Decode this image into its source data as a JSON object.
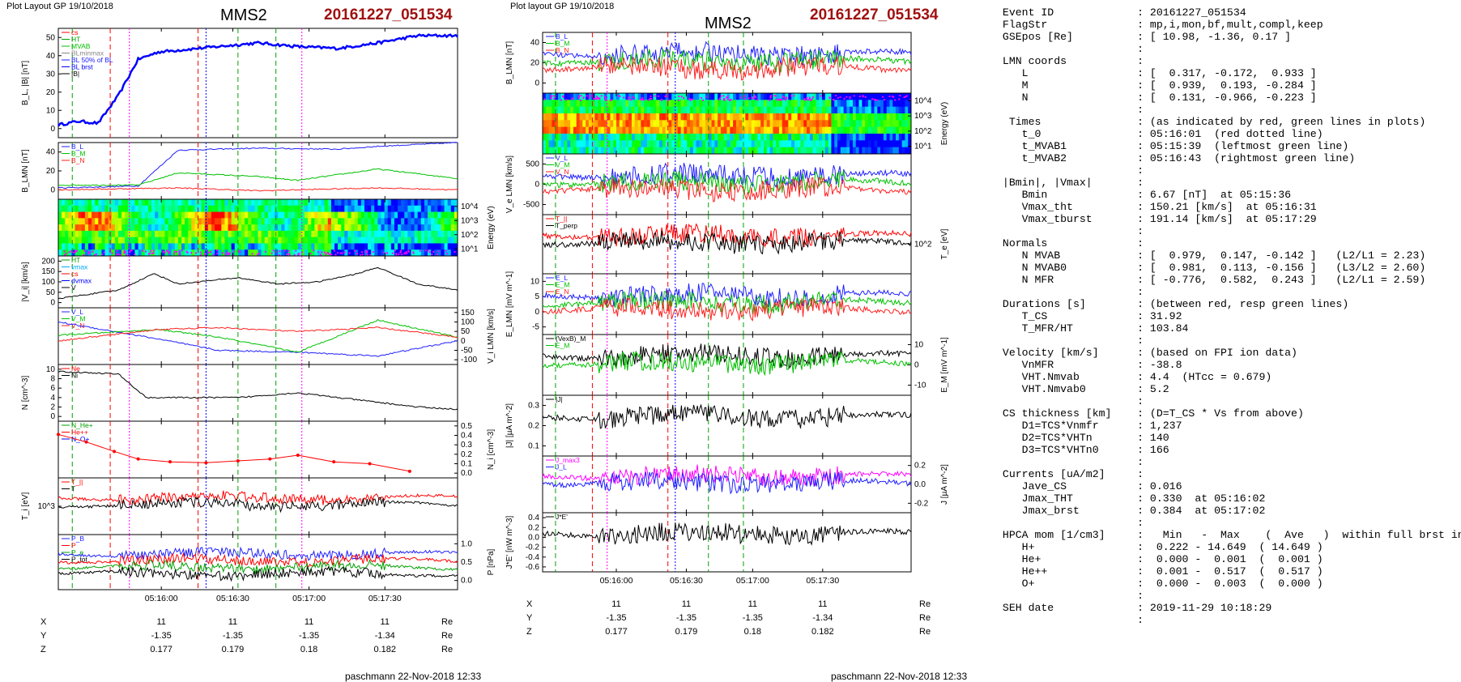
{
  "header": {
    "left_plot_label": "Plot Layout GP 19/10/2018",
    "middle_plot_label": "Plot layout GP 19/10/2018",
    "spacecraft": "MMS2",
    "event_id": "20161227_051534"
  },
  "colors": {
    "event_red": "#a01010",
    "bx": "#2020ff",
    "by": "#00c000",
    "bz": "#ff2020",
    "black": "#000000",
    "magenta": "#ff00ff"
  },
  "footer": {
    "left": "paschmann 22-Nov-2018 12:33",
    "middle": "paschmann 22-Nov-2018 12:33"
  },
  "time_axis": {
    "ticks": [
      "05:16:00",
      "05:16:30",
      "05:17:00",
      "05:17:30"
    ]
  },
  "ephemeris": {
    "unit": "Re",
    "rows": [
      {
        "label": "X",
        "values": [
          "11",
          "11",
          "11",
          "11"
        ]
      },
      {
        "label": "Y",
        "values": [
          "-1.35",
          "-1.35",
          "-1.35",
          "-1.34"
        ]
      },
      {
        "label": "Z",
        "values": [
          "0.177",
          "0.179",
          "0.18",
          "0.182"
        ]
      }
    ]
  },
  "chart_data": [
    {
      "type": "line",
      "panel": "left-1",
      "ylabel": "B_L, |B| [nT]",
      "yticks": [
        "50",
        "40",
        "30",
        "20",
        "10",
        "0"
      ],
      "legend": [
        "cs",
        "HT",
        "MVAB",
        "BLminmax",
        "BL 50% of BL",
        "BL brst",
        "|B|"
      ],
      "series": [
        {
          "name": "BL brst",
          "x": [
            0,
            0.05,
            0.1,
            0.15,
            0.2,
            0.25,
            0.3,
            0.4,
            0.5,
            0.6,
            0.7,
            0.8,
            0.9,
            1.0
          ],
          "values": [
            2,
            4,
            3,
            18,
            38,
            42,
            43,
            45,
            47,
            45,
            44,
            47,
            51,
            51
          ]
        }
      ]
    },
    {
      "type": "line",
      "panel": "left-2",
      "ylabel": "B_LMN [nT]",
      "yticks": [
        "40",
        "20",
        "0"
      ],
      "legend": [
        "B_L",
        "B_M",
        "B_N"
      ],
      "series": [
        {
          "name": "B_L",
          "x": [
            0,
            0.2,
            0.3,
            0.5,
            0.7,
            0.8,
            1.0
          ],
          "values": [
            2,
            4,
            42,
            44,
            43,
            46,
            50
          ]
        },
        {
          "name": "B_M",
          "x": [
            0,
            0.2,
            0.3,
            0.5,
            0.6,
            0.8,
            1.0
          ],
          "values": [
            5,
            5,
            18,
            14,
            10,
            22,
            12
          ]
        },
        {
          "name": "B_N",
          "x": [
            0,
            0.3,
            0.5,
            0.8,
            1.0
          ],
          "values": [
            0,
            2,
            -1,
            2,
            0
          ]
        }
      ]
    },
    {
      "type": "heatmap",
      "panel": "left-3",
      "ylabel": "Energy (eV)",
      "yticks": [
        "10^4",
        "10^3",
        "10^2",
        "10^1"
      ]
    },
    {
      "type": "line",
      "panel": "left-4",
      "ylabel": "|V_i| [km/s]",
      "yticks": [
        "200",
        "150",
        "100",
        "50",
        "0"
      ],
      "legend": [
        "HT",
        "vmax",
        "cs",
        "dvmax",
        "V"
      ],
      "series": [
        {
          "name": "V",
          "x": [
            0,
            0.15,
            0.24,
            0.3,
            0.45,
            0.55,
            0.65,
            0.75,
            0.8,
            0.9,
            1.0
          ],
          "values": [
            20,
            60,
            140,
            90,
            120,
            90,
            100,
            140,
            170,
            90,
            60
          ]
        }
      ]
    },
    {
      "type": "line",
      "panel": "left-5",
      "ylabel": "V_i LMN [km/s]",
      "yticks": [
        "150",
        "100",
        "50",
        "0",
        "-50",
        "-100"
      ],
      "legend": [
        "V_L",
        "V_M",
        "V_N"
      ],
      "series": [
        {
          "name": "V_L",
          "x": [
            0,
            0.25,
            0.4,
            0.6,
            0.8,
            1.0
          ],
          "values": [
            100,
            10,
            -50,
            -60,
            -80,
            0
          ]
        },
        {
          "name": "V_M",
          "x": [
            0,
            0.25,
            0.4,
            0.6,
            0.8,
            1.0
          ],
          "values": [
            30,
            60,
            20,
            -60,
            110,
            20
          ]
        },
        {
          "name": "V_N",
          "x": [
            0,
            0.25,
            0.4,
            0.6,
            0.8,
            1.0
          ],
          "values": [
            0,
            60,
            70,
            50,
            70,
            20
          ]
        }
      ]
    },
    {
      "type": "line",
      "panel": "left-6",
      "ylabel": "N [cm^-3]",
      "yticks": [
        "10",
        "8",
        "6",
        "4",
        "2",
        "0"
      ],
      "legend": [
        "Ne",
        "Ni"
      ],
      "series": [
        {
          "name": "Ni",
          "x": [
            0,
            0.15,
            0.22,
            0.3,
            0.45,
            0.6,
            0.75,
            0.9,
            1.0
          ],
          "values": [
            9.5,
            9,
            4,
            4,
            4,
            5,
            3.5,
            2,
            1.5
          ]
        }
      ]
    },
    {
      "type": "scatter",
      "panel": "left-7",
      "ylabel": "N_i [cm^-3]",
      "yticks": [
        "0.5",
        "0.4",
        "0.3",
        "0.2",
        "0.1",
        "0.0"
      ],
      "legend": [
        "N_He+",
        "He++",
        "N_O+"
      ],
      "series": [
        {
          "name": "He++",
          "x": [
            0.0,
            0.07,
            0.14,
            0.2,
            0.28,
            0.37,
            0.45,
            0.53,
            0.6,
            0.69,
            0.78,
            0.88
          ],
          "values": [
            0.41,
            0.33,
            0.23,
            0.15,
            0.12,
            0.11,
            0.13,
            0.15,
            0.19,
            0.12,
            0.1,
            0.02
          ]
        }
      ]
    },
    {
      "type": "line",
      "panel": "left-8",
      "ylabel": "T_i [eV]",
      "yticks": [
        "10^3"
      ],
      "legend": [
        "T_||",
        "T"
      ]
    },
    {
      "type": "line",
      "panel": "left-9",
      "ylabel": "P [nPa]",
      "yticks": [
        "1.0",
        "0.5",
        "0.0"
      ],
      "legend": [
        "P_B",
        "P",
        "P_e",
        "P_tot"
      ]
    },
    {
      "type": "line",
      "panel": "mid-1",
      "ylabel": "B_LMN [nT]",
      "yticks": [
        "40",
        "20",
        "0"
      ],
      "legend": [
        "B_L",
        "B_M",
        "B_N"
      ]
    },
    {
      "type": "heatmap",
      "panel": "mid-2",
      "ylabel": "Energy (eV)",
      "yticks": [
        "10^4",
        "10^3",
        "10^2",
        "10^1"
      ]
    },
    {
      "type": "line",
      "panel": "mid-3",
      "ylabel": "V_e LMN [km/s]",
      "yticks": [
        "500",
        "0",
        "-500"
      ],
      "legend": [
        "V_L",
        "V_M",
        "V_N"
      ]
    },
    {
      "type": "line",
      "panel": "mid-4",
      "ylabel": "T_e [eV]",
      "yticks": [
        "10^2"
      ],
      "legend": [
        "T_||",
        "T_perp"
      ]
    },
    {
      "type": "line",
      "panel": "mid-5",
      "ylabel": "E_LMN [mV m^-1]",
      "yticks": [
        "10",
        "5",
        "0",
        "-5"
      ],
      "legend": [
        "E_L",
        "E_M",
        "E_N"
      ]
    },
    {
      "type": "line",
      "panel": "mid-6",
      "ylabel": "E_M [mV m^-1]",
      "yticks": [
        "10",
        "0",
        "-10"
      ],
      "legend": [
        "(VexB)_M",
        "E_M"
      ]
    },
    {
      "type": "line",
      "panel": "mid-7",
      "ylabel": "|J| [µA m^-2]",
      "yticks": [
        "0.3",
        "0.2",
        "0.1"
      ],
      "legend": [
        "|J|"
      ]
    },
    {
      "type": "line",
      "panel": "mid-8",
      "ylabel": "J [µA m^-2]",
      "yticks": [
        "0.2",
        "0.0",
        "-0.2"
      ],
      "legend": [
        "J_max3",
        "J_L"
      ]
    },
    {
      "type": "line",
      "panel": "mid-9",
      "ylabel": "J*E' [nW m^-3]",
      "yticks": [
        "0.4",
        "0.2",
        "0.0",
        "-0.2",
        "-0.4",
        "-0.6"
      ],
      "legend": [
        "J*E'"
      ]
    }
  ],
  "info_panel": {
    "rows": [
      [
        "Event ID",
        ": 20161227_051534"
      ],
      [
        "FlagStr",
        ": mp,i,mon,bf,mult,compl,keep"
      ],
      [
        "GSEpos [Re]",
        ": [ 10.98, -1.36, 0.17 ]"
      ],
      [
        "",
        ":"
      ],
      [
        "LMN coords",
        ":"
      ],
      [
        "   L",
        ": [  0.317, -0.172,  0.933 ]"
      ],
      [
        "   M",
        ": [  0.939,  0.193, -0.284 ]"
      ],
      [
        "   N",
        ": [  0.131, -0.966, -0.223 ]"
      ],
      [
        "",
        ":"
      ],
      [
        " Times",
        ": (as indicated by red, green lines in plots)"
      ],
      [
        "   t_0",
        ": 05:16:01  (red dotted line)"
      ],
      [
        "   t_MVAB1",
        ": 05:15:39  (leftmost green line)"
      ],
      [
        "   t_MVAB2",
        ": 05:16:43  (rightmost green line)"
      ],
      [
        "",
        ":"
      ],
      [
        "|Bmin|, |Vmax|",
        ":"
      ],
      [
        "   Bmin",
        ": 6.67 [nT]  at 05:15:36"
      ],
      [
        "   Vmax_tht",
        ": 150.21 [km/s]  at 05:16:31"
      ],
      [
        "   Vmax_tburst",
        ": 191.14 [km/s]  at 05:17:29"
      ],
      [
        "",
        ":"
      ],
      [
        "Normals",
        ":"
      ],
      [
        "   N MVAB",
        ": [  0.979,  0.147, -0.142 ]   (L2/L1 = 2.23)"
      ],
      [
        "   N MVAB0",
        ": [  0.981,  0.113, -0.156 ]   (L3/L2 = 2.60)"
      ],
      [
        "   N MFR",
        ": [ -0.776,  0.582,  0.243 ]   (L2/L1 = 2.59)"
      ],
      [
        "",
        ":"
      ],
      [
        "Durations [s]",
        ": (between red, resp green lines)"
      ],
      [
        "   T_CS",
        ": 31.92"
      ],
      [
        "   T_MFR/HT",
        ": 103.84"
      ],
      [
        "",
        ":"
      ],
      [
        "Velocity [km/s]",
        ": (based on FPI ion data)"
      ],
      [
        "   VnMFR",
        ": -38.8"
      ],
      [
        "   VHT.Nmvab",
        ": 4.4  (HTcc = 0.679)"
      ],
      [
        "   VHT.Nmvab0",
        ": 5.2"
      ],
      [
        "",
        ":"
      ],
      [
        "CS thickness [km]",
        ": (D=T_CS * Vs from above)"
      ],
      [
        "   D1=TCS*Vnmfr",
        ": 1,237"
      ],
      [
        "   D2=TCS*VHTn",
        ": 140"
      ],
      [
        "   D3=TCS*VHTn0",
        ": 166"
      ],
      [
        "",
        ":"
      ],
      [
        "Currents [uA/m2]",
        ":"
      ],
      [
        "   Jave_CS",
        ": 0.016"
      ],
      [
        "   Jmax_THT",
        ": 0.330  at 05:16:02"
      ],
      [
        "   Jmax_brst",
        ": 0.384  at 05:17:02"
      ],
      [
        "",
        ":"
      ],
      [
        "HPCA mom [1/cm3]",
        ":   Min   -  Max    (  Ave   )  within full brst int"
      ],
      [
        "   H+",
        ":  0.222 - 14.649  ( 14.649 )"
      ],
      [
        "   He+",
        ":  0.000 -  0.001  (  0.001 )"
      ],
      [
        "   He++",
        ":  0.001 -  0.517  (  0.517 )"
      ],
      [
        "   O+",
        ":  0.000 -  0.003  (  0.000 )"
      ],
      [
        "",
        ":"
      ],
      [
        "SEH date",
        ": 2019-11-29 10:18:29"
      ],
      [
        "",
        ":"
      ]
    ]
  }
}
